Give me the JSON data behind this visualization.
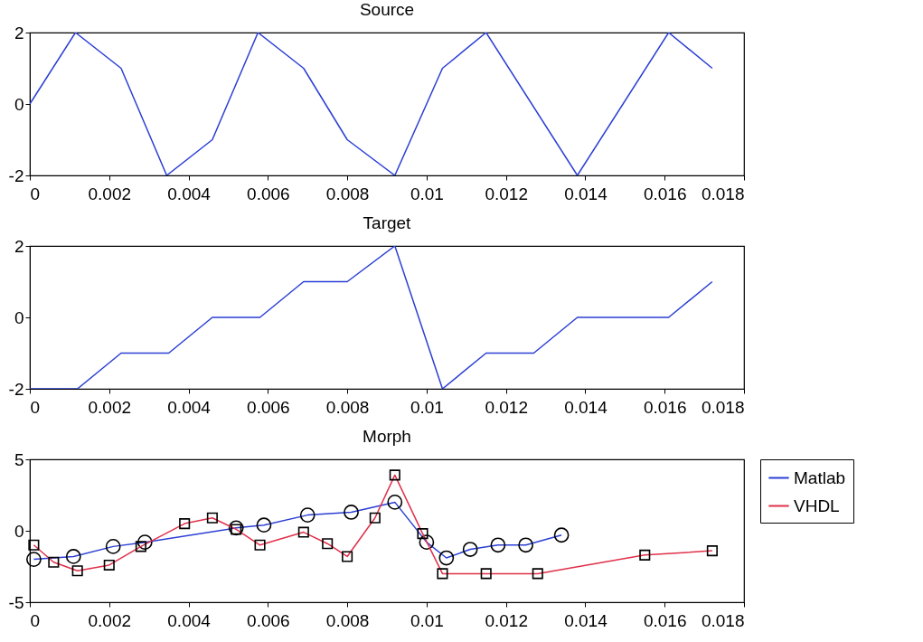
{
  "chart_data": [
    {
      "type": "line",
      "title": "Source",
      "x": [
        0,
        0.00115,
        0.0023,
        0.00345,
        0.0046,
        0.00575,
        0.0069,
        0.008,
        0.0092,
        0.0104,
        0.0115,
        0.0138,
        0.0161,
        0.0172
      ],
      "values": [
        0,
        2,
        1,
        -2,
        -1,
        2,
        1,
        -1,
        -2,
        1,
        2,
        -2,
        2,
        1
      ],
      "color": "#2b3fd4",
      "xlim": [
        0,
        0.018
      ],
      "xticks": [
        0,
        0.002,
        0.004,
        0.006,
        0.008,
        0.01,
        0.012,
        0.014,
        0.016,
        0.018
      ],
      "ylim": [
        -2,
        2
      ],
      "yticks": [
        -2,
        0,
        2
      ],
      "grid": false
    },
    {
      "type": "line",
      "title": "Target",
      "x": [
        0,
        0.0012,
        0.0023,
        0.0035,
        0.0046,
        0.0058,
        0.0069,
        0.008,
        0.0092,
        0.0104,
        0.0115,
        0.0127,
        0.0138,
        0.0161,
        0.0172
      ],
      "values": [
        -2,
        -2,
        -1,
        -1,
        0,
        0,
        1,
        1,
        2,
        -2,
        -1,
        -1,
        0,
        0,
        1
      ],
      "color": "#2b3fd4",
      "xlim": [
        0,
        0.018
      ],
      "xticks": [
        0,
        0.002,
        0.004,
        0.006,
        0.008,
        0.01,
        0.012,
        0.014,
        0.016,
        0.018
      ],
      "ylim": [
        -2,
        2
      ],
      "yticks": [
        -2,
        0,
        2
      ],
      "grid": false
    },
    {
      "type": "line",
      "title": "Morph",
      "series": [
        {
          "name": "Matlab",
          "color": "#2b3fd4",
          "marker": "circle",
          "x": [
            0.0001,
            0.0011,
            0.0021,
            0.0029,
            0.0052,
            0.0059,
            0.007,
            0.0081,
            0.0092,
            0.01,
            0.0105,
            0.0111,
            0.0118,
            0.0125,
            0.0134
          ],
          "values": [
            -2,
            -1.8,
            -1.1,
            -0.8,
            0.2,
            0.4,
            1.1,
            1.3,
            2,
            -0.8,
            -1.9,
            -1.3,
            -1,
            -1,
            -0.3
          ]
        },
        {
          "name": "VHDL",
          "color": "#e0304a",
          "marker": "square",
          "x": [
            0.0001,
            0.0006,
            0.0012,
            0.002,
            0.0028,
            0.0039,
            0.0046,
            0.0052,
            0.0058,
            0.0069,
            0.0075,
            0.008,
            0.0087,
            0.0092,
            0.0099,
            0.0104,
            0.0115,
            0.0128,
            0.0155,
            0.0172
          ],
          "values": [
            -1,
            -2.2,
            -2.8,
            -2.4,
            -1.1,
            0.5,
            0.9,
            0.1,
            -1,
            -0.1,
            -0.9,
            -1.8,
            0.9,
            3.9,
            -0.2,
            -3,
            -3,
            -3,
            -1.7,
            -1.4
          ]
        }
      ],
      "xlim": [
        0,
        0.018
      ],
      "xticks": [
        0,
        0.002,
        0.004,
        0.006,
        0.008,
        0.01,
        0.012,
        0.014,
        0.016,
        0.018
      ],
      "ylim": [
        -5,
        5
      ],
      "yticks": [
        -5,
        0,
        5
      ],
      "grid": false,
      "legend": "right"
    }
  ]
}
